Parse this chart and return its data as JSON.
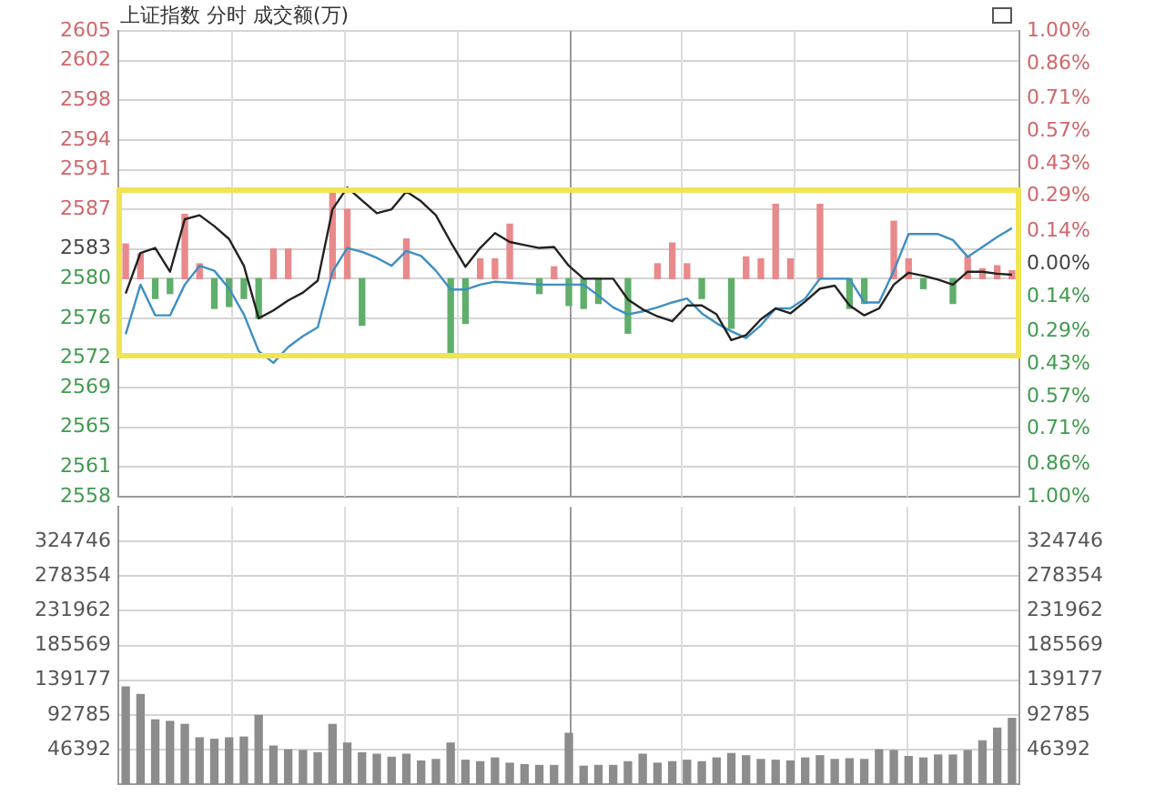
{
  "chart_data": [
    {
      "type": "line",
      "title": "上证指数 分时 成交额(万)",
      "categories": [
        null,
        null,
        null,
        null,
        null,
        null,
        null,
        null,
        null,
        null,
        null,
        null,
        null,
        null,
        null,
        null,
        null,
        null,
        null,
        null,
        null,
        null,
        null,
        null,
        null,
        null,
        null,
        null,
        null,
        null,
        null,
        null,
        null,
        null,
        null,
        null,
        null,
        null,
        null,
        null,
        null,
        null,
        null,
        null,
        null,
        null,
        null,
        null,
        null,
        null,
        null,
        null,
        null,
        null,
        null,
        null,
        null,
        null,
        null,
        null,
        null
      ],
      "ylim": [
        2558,
        2605
      ],
      "yticks": [
        2558,
        2561,
        2565,
        2569,
        2572,
        2576,
        2580,
        2583,
        2587,
        2591,
        2594,
        2598,
        2602,
        2605
      ],
      "y2lim": [
        -1,
        1
      ],
      "y2ticks": [
        {
          "value": -1,
          "label": "1.00%"
        },
        {
          "value": -0.86,
          "label": "0.86%"
        },
        {
          "value": -0.71,
          "label": "0.71%"
        },
        {
          "value": -0.57,
          "label": "0.57%"
        },
        {
          "value": -0.43,
          "label": "0.43%"
        },
        {
          "value": -0.29,
          "label": "0.29%"
        },
        {
          "value": -0.14,
          "label": "0.14%"
        },
        {
          "value": 0,
          "label": "0.00%"
        },
        {
          "value": 0.14,
          "label": "0.14%"
        },
        {
          "value": 0.29,
          "label": "0.29%"
        },
        {
          "value": 0.43,
          "label": "0.43%"
        },
        {
          "value": 0.57,
          "label": "0.57%"
        },
        {
          "value": 0.71,
          "label": "0.71%"
        },
        {
          "value": 0.86,
          "label": "0.86%"
        },
        {
          "value": 1,
          "label": "1.00%"
        }
      ],
      "grid": true,
      "legend": false,
      "tick_labels": "y",
      "marker": "none",
      "series": [
        {
          "type": "bar",
          "values": [
            3.5,
            2.5,
            -2,
            -1.5,
            6.5,
            1.5,
            -3,
            -2.8,
            -2,
            -4,
            3,
            3,
            null,
            null,
            8.8,
            7,
            -4.7,
            null,
            null,
            4,
            null,
            null,
            -8,
            -4.5,
            2,
            2,
            5.5,
            null,
            -1.5,
            1.2,
            -2.7,
            -3,
            -2.5,
            null,
            -5.5,
            null,
            1.5,
            3.6,
            1.5,
            -2,
            null,
            -5,
            2.2,
            2,
            7.5,
            2,
            null,
            7.5,
            null,
            -3,
            -2.5,
            null,
            5.8,
            2,
            -1,
            null,
            -2.5,
            2.2,
            1,
            1.3,
            0.8
          ],
          "base": [
            2580,
            2580,
            2580,
            2580,
            2580,
            2580,
            2580,
            2580,
            2580,
            2580,
            2580,
            2580,
            null,
            null,
            2580,
            2580,
            2580,
            null,
            null,
            2580,
            null,
            null,
            2580,
            2580,
            2580,
            2580,
            2580,
            null,
            2580,
            2580,
            2580,
            2580,
            2580,
            null,
            2580,
            null,
            2580,
            2580,
            2580,
            2580,
            null,
            2580,
            2580,
            2580,
            2580,
            2580,
            null,
            2580,
            null,
            2580,
            2580,
            null,
            2580,
            2580,
            2580,
            null,
            2580,
            2580,
            2580,
            2580,
            2580
          ],
          "colors": [
            "#e8898b",
            "#e8898b",
            "#5fae6a",
            "#5fae6a",
            "#e8898b",
            "#e8898b",
            "#5fae6a",
            "#5fae6a",
            "#5fae6a",
            "#5fae6a",
            "#e8898b",
            "#e8898b",
            "#e8898b",
            "#e8898b",
            "#e8898b",
            "#e8898b",
            "#5fae6a",
            "#e8898b",
            "#e8898b",
            "#e8898b",
            "#e8898b",
            "#e8898b",
            "#5fae6a",
            "#5fae6a",
            "#e8898b",
            "#e8898b",
            "#e8898b",
            "#e8898b",
            "#5fae6a",
            "#e8898b",
            "#5fae6a",
            "#5fae6a",
            "#5fae6a",
            "#e8898b",
            "#5fae6a",
            "#e8898b",
            "#e8898b",
            "#e8898b",
            "#e8898b",
            "#5fae6a",
            "#e8898b",
            "#5fae6a",
            "#e8898b",
            "#e8898b",
            "#e8898b",
            "#e8898b",
            "#e8898b",
            "#e8898b",
            "#e8898b",
            "#5fae6a",
            "#5fae6a",
            "#e8898b",
            "#e8898b",
            "#e8898b",
            "#5fae6a",
            "#e8898b",
            "#5fae6a",
            "#e8898b",
            "#e8898b",
            "#e8898b",
            "#e8898b"
          ]
        },
        {
          "type": "line",
          "color": "#222222",
          "values": [
            2578.5,
            2582.6,
            2583.1,
            2580.7,
            2586.0,
            2586.4,
            2585.3,
            2584.0,
            2581.3,
            2576.0,
            2576.8,
            2577.8,
            2578.6,
            2579.8,
            2587.0,
            2589.2,
            2587.9,
            2586.6,
            2587.0,
            2588.8,
            2587.8,
            2586.4,
            2583.7,
            2581.2,
            2583.1,
            2584.6,
            2583.7,
            2583.4,
            2583.1,
            2583.2,
            2581.3,
            2580.0,
            2580.0,
            2580.0,
            2577.9,
            2576.9,
            2576.2,
            2575.7,
            2577.3,
            2577.3,
            2576.4,
            2573.8,
            2574.3,
            2575.9,
            2577.0,
            2576.5,
            2577.7,
            2579.0,
            2579.3,
            2577.3,
            2576.3,
            2577.0,
            2579.4,
            2580.6,
            2580.3,
            2579.9,
            2579.4,
            2580.7,
            2580.7,
            2580.5,
            2580.4
          ]
        },
        {
          "type": "line",
          "color": "#3d8fc4",
          "values": [
            2574.4,
            2579.4,
            2576.3,
            2576.3,
            2579.4,
            2581.3,
            2580.8,
            2579.0,
            2576.4,
            2572.7,
            2571.5,
            2573.1,
            2574.2,
            2575.1,
            2580.7,
            2583.1,
            2582.7,
            2582.1,
            2581.3,
            2582.8,
            2582.3,
            2580.8,
            2578.9,
            2578.9,
            2579.4,
            2579.7,
            2579.6,
            2579.5,
            2579.4,
            2579.4,
            2579.4,
            2579.4,
            2578.3,
            2577.1,
            2576.4,
            2576.7,
            2577.1,
            2577.6,
            2578.0,
            2576.5,
            2575.5,
            2574.7,
            2574.0,
            2575.3,
            2577.0,
            2577.0,
            2578.0,
            2580.0,
            2580.0,
            2580.0,
            2577.6,
            2577.6,
            2580.8,
            2584.5,
            2584.5,
            2584.5,
            2583.9,
            2582.2,
            2583.2,
            2584.2,
            2585.1
          ]
        }
      ]
    },
    {
      "type": "bar",
      "color": "#8c8c8c",
      "categories": [
        null,
        null,
        null,
        null,
        null,
        null,
        null,
        null,
        null,
        null,
        null,
        null,
        null,
        null,
        null,
        null,
        null,
        null,
        null,
        null,
        null,
        null,
        null,
        null,
        null,
        null,
        null,
        null,
        null,
        null,
        null,
        null,
        null,
        null,
        null,
        null,
        null,
        null,
        null,
        null,
        null,
        null,
        null,
        null,
        null,
        null,
        null,
        null,
        null,
        null,
        null,
        null,
        null,
        null,
        null,
        null,
        null,
        null,
        null,
        null,
        null
      ],
      "ylim": [
        0,
        371139
      ],
      "yticks": [
        46392,
        92785,
        139177,
        185569,
        231962,
        278354,
        324746
      ],
      "y2lim": [
        0,
        371139
      ],
      "y2ticks": [
        46392,
        92785,
        139177,
        185569,
        231962,
        278354,
        324746
      ],
      "grid": true,
      "legend": false,
      "tick_labels": "y",
      "values": [
        130000,
        120000,
        86000,
        84000,
        80000,
        62000,
        60000,
        62000,
        63000,
        92000,
        51000,
        46000,
        45000,
        42000,
        80000,
        55000,
        42000,
        40000,
        36000,
        40000,
        31000,
        33000,
        55000,
        32000,
        30000,
        35000,
        28000,
        26000,
        25000,
        25000,
        68000,
        24000,
        25000,
        25000,
        30000,
        40000,
        28000,
        30000,
        32000,
        30000,
        35000,
        41000,
        38000,
        33000,
        32000,
        31000,
        35000,
        38000,
        33000,
        34000,
        33000,
        46000,
        45000,
        37000,
        35000,
        39000,
        39000,
        45000,
        58000,
        75000,
        88000
      ]
    }
  ]
}
